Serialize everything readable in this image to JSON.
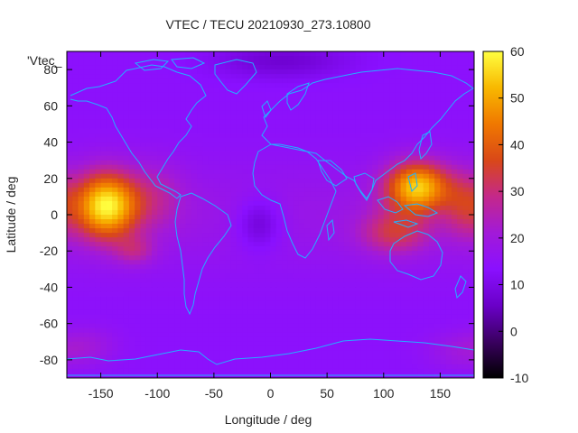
{
  "chart_data": {
    "type": "heatmap",
    "title": "VTEC / TECU 20210930_273.10800",
    "xlabel": "Longitude / deg",
    "ylabel": "Latitude / deg",
    "series_key": "'Vtec_",
    "xlim": [
      -180,
      180
    ],
    "ylim": [
      -90,
      90
    ],
    "x_ticks": [
      -150,
      -100,
      -50,
      0,
      50,
      100,
      150
    ],
    "y_ticks": [
      -80,
      -60,
      -40,
      -20,
      0,
      20,
      40,
      60,
      80
    ],
    "colorbar": {
      "range": [
        -10,
        60
      ],
      "ticks": [
        -10,
        0,
        10,
        20,
        30,
        40,
        50,
        60
      ],
      "palette": [
        "#000000",
        "#3a0060",
        "#6a00c8",
        "#8a10ff",
        "#a21ad8",
        "#c4288a",
        "#d94818",
        "#f07800",
        "#f8b800",
        "#ffff40"
      ]
    },
    "background_vtec": 14,
    "features": [
      {
        "lon": -145,
        "lat": 5,
        "peak": 42,
        "width_lon": 28,
        "width_lat": 18
      },
      {
        "lon": -120,
        "lat": -20,
        "peak": 10,
        "width_lon": 18,
        "width_lat": 8
      },
      {
        "lon": -100,
        "lat": 10,
        "peak": 8,
        "width_lon": 25,
        "width_lat": 18
      },
      {
        "lon": 130,
        "lat": 15,
        "peak": 38,
        "width_lon": 28,
        "width_lat": 14
      },
      {
        "lon": 110,
        "lat": -10,
        "peak": 16,
        "width_lon": 30,
        "width_lat": 12
      },
      {
        "lon": 170,
        "lat": 5,
        "peak": 12,
        "width_lon": 18,
        "width_lat": 18
      },
      {
        "lon": -10,
        "lat": -5,
        "peak": -9,
        "width_lon": 20,
        "width_lat": 14
      },
      {
        "lon": 10,
        "lat": 85,
        "peak": -7,
        "width_lon": 60,
        "width_lat": 10
      },
      {
        "lon": 170,
        "lat": -75,
        "peak": 6,
        "width_lon": 30,
        "width_lat": 10
      },
      {
        "lon": -160,
        "lat": -72,
        "peak": 5,
        "width_lon": 25,
        "width_lat": 10
      }
    ]
  }
}
